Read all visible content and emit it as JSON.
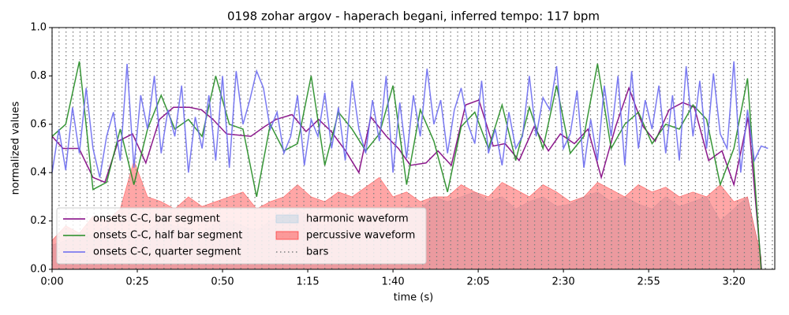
{
  "chart_data": {
    "type": "line",
    "title": "0198 zohar argov - haperach begani, inferred tempo: 117 bpm",
    "xlabel": "time (s)",
    "ylabel": "normalized values",
    "xlim": [
      0,
      212
    ],
    "ylim": [
      0,
      1
    ],
    "xticks": [
      {
        "value": 0,
        "label": "0:00"
      },
      {
        "value": 25,
        "label": "0:25"
      },
      {
        "value": 50,
        "label": "0:50"
      },
      {
        "value": 75,
        "label": "1:15"
      },
      {
        "value": 100,
        "label": "1:40"
      },
      {
        "value": 125,
        "label": "2:05"
      },
      {
        "value": 150,
        "label": "2:30"
      },
      {
        "value": 175,
        "label": "2:55"
      },
      {
        "value": 200,
        "label": "3:20"
      }
    ],
    "yticks": [
      {
        "value": 0,
        "label": "0.0"
      },
      {
        "value": 0.2,
        "label": "0.2"
      },
      {
        "value": 0.4,
        "label": "0.4"
      },
      {
        "value": 0.6,
        "label": "0.6"
      },
      {
        "value": 0.8,
        "label": "0.8"
      },
      {
        "value": 1,
        "label": "1.0"
      }
    ],
    "legend_loc": "lower left",
    "legend_ncol": 2,
    "series": [
      {
        "name": "onsets C-C, bar segment",
        "type": "line",
        "color": "#800080",
        "x": [
          0,
          3.2,
          7.9,
          12.0,
          15.5,
          19.4,
          23.6,
          27.5,
          31.5,
          35.6,
          40.3,
          43.8,
          47.2,
          51.2,
          58.3,
          62.3,
          65.7,
          70.4,
          74.5,
          78.2,
          81.9,
          86.1,
          90.0,
          93.5,
          98.1,
          101.6,
          105.1,
          109.7,
          113.2,
          117.1,
          121.3,
          125.2,
          129.4,
          132.9,
          137.0,
          141.4,
          145.6,
          149.1,
          153.2,
          157.2,
          161.1,
          165.3,
          169.2,
          173.4,
          176.9,
          181.0,
          185.0,
          188.4,
          192.6,
          196.5,
          200.0,
          204.2,
          208.1
        ],
        "values": [
          0.55,
          0.5,
          0.5,
          0.38,
          0.36,
          0.53,
          0.56,
          0.44,
          0.62,
          0.67,
          0.67,
          0.66,
          0.62,
          0.56,
          0.55,
          0.59,
          0.62,
          0.64,
          0.57,
          0.62,
          0.57,
          0.49,
          0.4,
          0.63,
          0.55,
          0.5,
          0.43,
          0.44,
          0.49,
          0.43,
          0.68,
          0.7,
          0.51,
          0.52,
          0.45,
          0.59,
          0.49,
          0.56,
          0.52,
          0.58,
          0.38,
          0.59,
          0.75,
          0.59,
          0.53,
          0.66,
          0.69,
          0.67,
          0.45,
          0.49,
          0.35,
          0.63,
          0.0
        ]
      },
      {
        "name": "onsets C-C, half bar segment",
        "type": "line",
        "color": "#228b22",
        "x": [
          0,
          4,
          8,
          12,
          16,
          20,
          24,
          28,
          32,
          36,
          40,
          44,
          48,
          52,
          56,
          60,
          64,
          68,
          72,
          76,
          80,
          84,
          88,
          92,
          96,
          100,
          104,
          108,
          112,
          116,
          120,
          124,
          128,
          132,
          136,
          140,
          144,
          148,
          152,
          156,
          160,
          164,
          168,
          172,
          176,
          180,
          184,
          188,
          192,
          196,
          200,
          204,
          208
        ],
        "values": [
          0.55,
          0.6,
          0.86,
          0.33,
          0.36,
          0.58,
          0.35,
          0.58,
          0.72,
          0.58,
          0.62,
          0.55,
          0.8,
          0.6,
          0.58,
          0.3,
          0.6,
          0.49,
          0.52,
          0.8,
          0.43,
          0.65,
          0.58,
          0.49,
          0.56,
          0.76,
          0.35,
          0.66,
          0.53,
          0.32,
          0.59,
          0.65,
          0.5,
          0.68,
          0.45,
          0.67,
          0.5,
          0.76,
          0.48,
          0.55,
          0.85,
          0.5,
          0.6,
          0.65,
          0.52,
          0.6,
          0.58,
          0.68,
          0.62,
          0.35,
          0.5,
          0.79,
          0.0
        ]
      },
      {
        "name": "onsets C-C, quarter segment",
        "type": "line",
        "color": "#6b6bf0",
        "x": [
          0,
          2,
          4,
          6,
          8,
          10,
          12,
          14,
          16,
          18,
          20,
          22,
          24,
          26,
          28,
          30,
          32,
          34,
          36,
          38,
          40,
          42,
          44,
          46,
          48,
          50,
          52,
          54,
          56,
          58,
          60,
          62,
          64,
          66,
          68,
          70,
          72,
          74,
          76,
          78,
          80,
          82,
          84,
          86,
          88,
          90,
          92,
          94,
          96,
          98,
          100,
          102,
          104,
          106,
          108,
          110,
          112,
          114,
          116,
          118,
          120,
          122,
          124,
          126,
          128,
          130,
          132,
          134,
          136,
          138,
          140,
          142,
          144,
          146,
          148,
          150,
          152,
          154,
          156,
          158,
          160,
          162,
          164,
          166,
          168,
          170,
          172,
          174,
          176,
          178,
          180,
          182,
          184,
          186,
          188,
          190,
          192,
          194,
          196,
          198,
          200,
          202,
          204,
          206,
          208,
          210
        ],
        "values": [
          0.4,
          0.58,
          0.41,
          0.67,
          0.48,
          0.75,
          0.5,
          0.38,
          0.55,
          0.65,
          0.45,
          0.85,
          0.42,
          0.72,
          0.58,
          0.8,
          0.48,
          0.66,
          0.55,
          0.76,
          0.4,
          0.63,
          0.5,
          0.72,
          0.45,
          0.8,
          0.42,
          0.82,
          0.6,
          0.7,
          0.82,
          0.75,
          0.58,
          0.65,
          0.48,
          0.55,
          0.72,
          0.43,
          0.62,
          0.55,
          0.73,
          0.5,
          0.67,
          0.45,
          0.78,
          0.58,
          0.48,
          0.7,
          0.53,
          0.8,
          0.4,
          0.69,
          0.46,
          0.72,
          0.55,
          0.83,
          0.6,
          0.7,
          0.48,
          0.66,
          0.75,
          0.6,
          0.52,
          0.78,
          0.48,
          0.58,
          0.43,
          0.65,
          0.5,
          0.55,
          0.8,
          0.55,
          0.71,
          0.66,
          0.84,
          0.5,
          0.56,
          0.74,
          0.42,
          0.62,
          0.45,
          0.76,
          0.55,
          0.8,
          0.43,
          0.82,
          0.5,
          0.7,
          0.58,
          0.76,
          0.48,
          0.72,
          0.45,
          0.84,
          0.55,
          0.78,
          0.5,
          0.81,
          0.56,
          0.5,
          0.86,
          0.4,
          0.66,
          0.45,
          0.51,
          0.5
        ]
      },
      {
        "name": "harmonic waveform",
        "type": "area",
        "color": "#a6cbe3",
        "x": [
          0,
          4,
          8,
          12,
          16,
          20,
          24,
          28,
          32,
          36,
          40,
          44,
          48,
          52,
          56,
          60,
          64,
          68,
          72,
          76,
          80,
          84,
          88,
          92,
          96,
          100,
          104,
          108,
          112,
          116,
          120,
          124,
          128,
          132,
          136,
          140,
          144,
          148,
          152,
          156,
          160,
          164,
          168,
          172,
          176,
          180,
          184,
          188,
          192,
          196,
          200,
          204,
          208
        ],
        "values": [
          0.1,
          0.12,
          0.15,
          0.14,
          0.18,
          0.12,
          0.15,
          0.16,
          0.2,
          0.18,
          0.17,
          0.15,
          0.19,
          0.2,
          0.18,
          0.16,
          0.2,
          0.22,
          0.25,
          0.2,
          0.18,
          0.22,
          0.24,
          0.2,
          0.19,
          0.22,
          0.26,
          0.25,
          0.3,
          0.28,
          0.3,
          0.32,
          0.28,
          0.3,
          0.25,
          0.28,
          0.3,
          0.26,
          0.27,
          0.3,
          0.32,
          0.28,
          0.3,
          0.27,
          0.25,
          0.3,
          0.26,
          0.28,
          0.3,
          0.2,
          0.25,
          0.3,
          0.05
        ]
      },
      {
        "name": "percussive waveform",
        "type": "area",
        "color": "#ff0000",
        "x": [
          0,
          4,
          8,
          12,
          16,
          20,
          24,
          28,
          32,
          36,
          40,
          44,
          48,
          52,
          56,
          60,
          64,
          68,
          72,
          76,
          80,
          84,
          88,
          92,
          96,
          100,
          104,
          108,
          112,
          116,
          120,
          124,
          128,
          132,
          136,
          140,
          144,
          148,
          152,
          156,
          160,
          164,
          168,
          172,
          176,
          180,
          184,
          188,
          192,
          196,
          200,
          204,
          208
        ],
        "values": [
          0.12,
          0.18,
          0.15,
          0.22,
          0.2,
          0.25,
          0.45,
          0.3,
          0.28,
          0.25,
          0.3,
          0.26,
          0.28,
          0.3,
          0.32,
          0.25,
          0.28,
          0.3,
          0.35,
          0.3,
          0.28,
          0.32,
          0.3,
          0.34,
          0.38,
          0.3,
          0.32,
          0.28,
          0.3,
          0.3,
          0.35,
          0.32,
          0.3,
          0.36,
          0.33,
          0.3,
          0.35,
          0.32,
          0.28,
          0.3,
          0.36,
          0.33,
          0.3,
          0.35,
          0.32,
          0.34,
          0.3,
          0.32,
          0.3,
          0.35,
          0.28,
          0.3,
          0.05
        ]
      },
      {
        "name": "bars",
        "type": "vline",
        "color": "#808080",
        "x": [
          0,
          2.05,
          4.1,
          6.15,
          8.21,
          10.26,
          12.31,
          14.36,
          16.41,
          18.46,
          20.51,
          22.56,
          24.62,
          26.67,
          28.72,
          30.77,
          32.82,
          34.87,
          36.92,
          38.97,
          41.03,
          43.08,
          45.13,
          47.18,
          49.23,
          51.28,
          53.33,
          55.38,
          57.44,
          59.49,
          61.54,
          63.59,
          65.64,
          67.69,
          69.74,
          71.79,
          73.85,
          75.9,
          77.95,
          80.0,
          82.05,
          84.1,
          86.15,
          88.21,
          90.26,
          92.31,
          94.36,
          96.41,
          98.46,
          100.51,
          102.56,
          104.62,
          106.67,
          108.72,
          110.77,
          112.82,
          114.87,
          116.92,
          118.97,
          121.03,
          123.08,
          125.13,
          127.18,
          129.23,
          131.28,
          133.33,
          135.38,
          137.44,
          139.49,
          141.54,
          143.59,
          145.64,
          147.69,
          149.74,
          151.79,
          153.85,
          155.9,
          157.95,
          160.0,
          162.05,
          164.1,
          166.15,
          168.21,
          170.26,
          172.31,
          174.36,
          176.41,
          178.46,
          180.51,
          182.56,
          184.62,
          186.67,
          188.72,
          190.77,
          192.82,
          194.87,
          196.92,
          198.97,
          201.03,
          203.08,
          205.13,
          207.18,
          209.23,
          211.28
        ]
      }
    ]
  }
}
